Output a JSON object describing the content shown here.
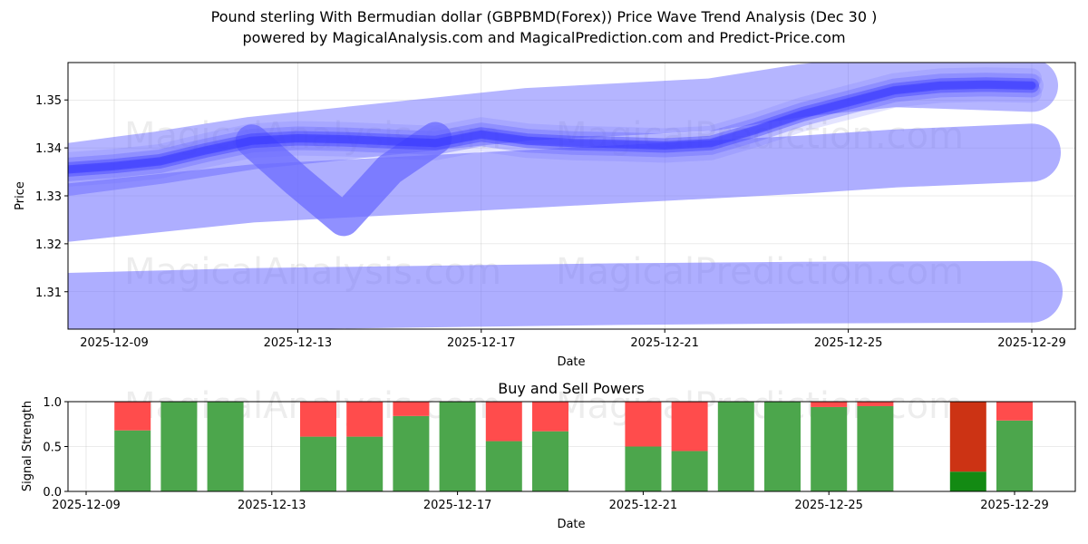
{
  "title_line1": "Pound sterling With Bermudian dollar (GBPBMD(Forex)) Price Wave Trend Analysis (Dec 30 )",
  "title_line2": "powered by MagicalAnalysis.com and MagicalPrediction.com and Predict-Price.com",
  "watermarks": [
    "MagicalAnalysis.com",
    "MagicalPrediction.com"
  ],
  "colors": {
    "band": "#6b6bff",
    "core": "#2c2cff",
    "buy": "#4ca64c",
    "sell": "#ff4c4c",
    "buy_dark": "#138a13",
    "sell_dark": "#cc3314"
  },
  "chart_data": [
    {
      "type": "line",
      "title": "",
      "xlabel": "Date",
      "ylabel": "Price",
      "x_ticks": [
        "2025-12-09",
        "2025-12-13",
        "2025-12-17",
        "2025-12-21",
        "2025-12-25",
        "2025-12-29"
      ],
      "y_ticks": [
        "1.31",
        "1.32",
        "1.33",
        "1.34",
        "1.35"
      ],
      "ylim": [
        1.3022,
        1.3578
      ],
      "x_range": [
        "2025-12-08",
        "2025-12-29"
      ],
      "series": [
        {
          "name": "main wave",
          "points": [
            [
              "2025-12-08",
              1.3355
            ],
            [
              "2025-12-09",
              1.3362
            ],
            [
              "2025-12-10",
              1.3372
            ],
            [
              "2025-12-11",
              1.3395
            ],
            [
              "2025-12-12",
              1.3415
            ],
            [
              "2025-12-13",
              1.342
            ],
            [
              "2025-12-14",
              1.3418
            ],
            [
              "2025-12-15",
              1.3414
            ],
            [
              "2025-12-16",
              1.341
            ],
            [
              "2025-12-17",
              1.3428
            ],
            [
              "2025-12-18",
              1.3415
            ],
            [
              "2025-12-19",
              1.341
            ],
            [
              "2025-12-20",
              1.3408
            ],
            [
              "2025-12-21",
              1.3405
            ],
            [
              "2025-12-22",
              1.341
            ],
            [
              "2025-12-23",
              1.3438
            ],
            [
              "2025-12-24",
              1.347
            ],
            [
              "2025-12-25",
              1.3495
            ],
            [
              "2025-12-26",
              1.352
            ],
            [
              "2025-12-27",
              1.353
            ],
            [
              "2025-12-28",
              1.3532
            ],
            [
              "2025-12-29",
              1.353
            ]
          ]
        },
        {
          "name": "dip wave",
          "points": [
            [
              "2025-12-12",
              1.3415
            ],
            [
              "2025-12-13",
              1.333
            ],
            [
              "2025-12-14",
              1.325
            ],
            [
              "2025-12-15",
              1.3355
            ],
            [
              "2025-12-16",
              1.342
            ]
          ]
        },
        {
          "name": "upper projection",
          "points": [
            [
              "2025-12-08",
              1.3355
            ],
            [
              "2025-12-10",
              1.338
            ],
            [
              "2025-12-12",
              1.341
            ],
            [
              "2025-12-14",
              1.343
            ],
            [
              "2025-12-16",
              1.345
            ],
            [
              "2025-12-18",
              1.347
            ],
            [
              "2025-12-20",
              1.348
            ],
            [
              "2025-12-22",
              1.349
            ],
            [
              "2025-12-24",
              1.352
            ],
            [
              "2025-12-26",
              1.354
            ],
            [
              "2025-12-29",
              1.353
            ]
          ]
        },
        {
          "name": "middle projection",
          "points": [
            [
              "2025-12-08",
              1.3265
            ],
            [
              "2025-12-10",
              1.3285
            ],
            [
              "2025-12-12",
              1.3305
            ],
            [
              "2025-12-14",
              1.3315
            ],
            [
              "2025-12-16",
              1.3325
            ],
            [
              "2025-12-18",
              1.3335
            ],
            [
              "2025-12-20",
              1.3345
            ],
            [
              "2025-12-22",
              1.3355
            ],
            [
              "2025-12-24",
              1.3365
            ],
            [
              "2025-12-26",
              1.3378
            ],
            [
              "2025-12-29",
              1.339
            ]
          ]
        },
        {
          "name": "lower projection",
          "points": [
            [
              "2025-12-08",
              1.3075
            ],
            [
              "2025-12-12",
              1.3085
            ],
            [
              "2025-12-16",
              1.309
            ],
            [
              "2025-12-20",
              1.3095
            ],
            [
              "2025-12-24",
              1.3098
            ],
            [
              "2025-12-29",
              1.31
            ]
          ]
        }
      ]
    },
    {
      "type": "bar",
      "title": "Buy and Sell Powers",
      "xlabel": "Date",
      "ylabel": "Signal Strength",
      "ylim": [
        0,
        1.0
      ],
      "y_ticks": [
        "0.0",
        "0.5",
        "1.0"
      ],
      "x_ticks": [
        "2025-12-09",
        "2025-12-13",
        "2025-12-17",
        "2025-12-21",
        "2025-12-25",
        "2025-12-29"
      ],
      "x_range": [
        "2025-12-08",
        "2025-12-29"
      ],
      "bars": [
        {
          "date": "2025-12-10",
          "buy": 0.68,
          "sell": 0.32
        },
        {
          "date": "2025-12-11",
          "buy": 1.0,
          "sell": 0.0
        },
        {
          "date": "2025-12-12",
          "buy": 1.0,
          "sell": 0.0
        },
        {
          "date": "2025-12-14",
          "buy": 0.61,
          "sell": 0.39
        },
        {
          "date": "2025-12-15",
          "buy": 0.61,
          "sell": 0.39
        },
        {
          "date": "2025-12-16",
          "buy": 0.84,
          "sell": 0.16
        },
        {
          "date": "2025-12-17",
          "buy": 1.0,
          "sell": 0.0
        },
        {
          "date": "2025-12-18",
          "buy": 0.56,
          "sell": 0.44
        },
        {
          "date": "2025-12-19",
          "buy": 0.67,
          "sell": 0.33
        },
        {
          "date": "2025-12-21",
          "buy": 0.5,
          "sell": 0.5
        },
        {
          "date": "2025-12-22",
          "buy": 0.45,
          "sell": 0.55
        },
        {
          "date": "2025-12-23",
          "buy": 1.0,
          "sell": 0.0
        },
        {
          "date": "2025-12-24",
          "buy": 1.0,
          "sell": 0.0
        },
        {
          "date": "2025-12-25",
          "buy": 0.94,
          "sell": 0.06
        },
        {
          "date": "2025-12-26",
          "buy": 0.95,
          "sell": 0.05
        },
        {
          "date": "2025-12-28",
          "buy": 0.22,
          "sell": 0.78,
          "dark": true
        },
        {
          "date": "2025-12-29",
          "buy": 0.79,
          "sell": 0.21
        }
      ]
    }
  ]
}
